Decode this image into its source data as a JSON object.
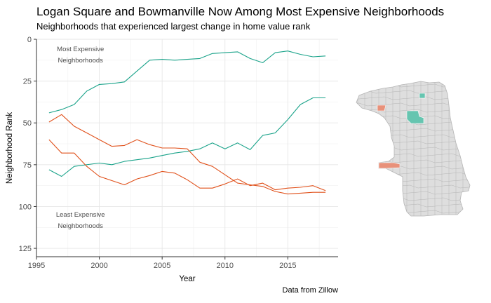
{
  "chart_data": {
    "type": "line",
    "title": "Logan Square and Bowmanville Now Among Most Expensive Neighborhoods",
    "subtitle": "Neighborhoods that experienced largest change in home value rank",
    "caption": "Data from Zillow",
    "xlabel": "Year",
    "ylabel": "Neighborhood Rank",
    "xlim": [
      1995,
      2019
    ],
    "ylim": [
      0,
      130
    ],
    "y_reversed": true,
    "x_ticks": [
      1995,
      2000,
      2005,
      2010,
      2015
    ],
    "y_ticks": [
      0,
      25,
      50,
      75,
      100,
      125
    ],
    "grid": true,
    "annotations": [
      {
        "lines": [
          "Most Expensive",
          "Neighborhoods"
        ],
        "x": 1998.5,
        "y": 3
      },
      {
        "lines": [
          "Least Expensive",
          "Neighborhoods"
        ],
        "x": 1998.5,
        "y": 102
      }
    ],
    "x": [
      1996,
      1997,
      1998,
      1999,
      2000,
      2001,
      2002,
      2003,
      2004,
      2005,
      2006,
      2007,
      2008,
      2009,
      2010,
      2011,
      2012,
      2013,
      2014,
      2015,
      2016,
      2017,
      2018
    ],
    "series": [
      {
        "color": "#1aa38a",
        "values": [
          44,
          42,
          39,
          31,
          27,
          26.5,
          25.5,
          19,
          12.5,
          12,
          12.5,
          12,
          11.5,
          8.5,
          8,
          7.5,
          11.5,
          14,
          8,
          7,
          9,
          10.5,
          10
        ]
      },
      {
        "color": "#1aa38a",
        "values": [
          78,
          82,
          76,
          75,
          74,
          75,
          73,
          72,
          71,
          69.5,
          68,
          67,
          65.5,
          62,
          65.5,
          62,
          66,
          57.5,
          56,
          48,
          39,
          35,
          35
        ]
      },
      {
        "color": "#e0501a",
        "values": [
          49.5,
          45,
          52,
          56,
          60,
          64,
          63.5,
          60,
          63,
          65,
          65,
          65.5,
          73.5,
          76,
          81,
          86,
          87,
          88,
          91,
          92.5,
          92,
          91.5,
          91.5
        ]
      },
      {
        "color": "#e0501a",
        "values": [
          60,
          68,
          68,
          76,
          82,
          84.5,
          87,
          83.5,
          81.5,
          79,
          80,
          84,
          89,
          89,
          86.5,
          83.5,
          87.5,
          86,
          90,
          89,
          88.5,
          87.5,
          90.5
        ]
      }
    ]
  },
  "map": {
    "fill": "#dedede",
    "stroke": "#b5b5b5",
    "highlight_teal": "#66c5b0",
    "highlight_orange": "#e8917a"
  }
}
